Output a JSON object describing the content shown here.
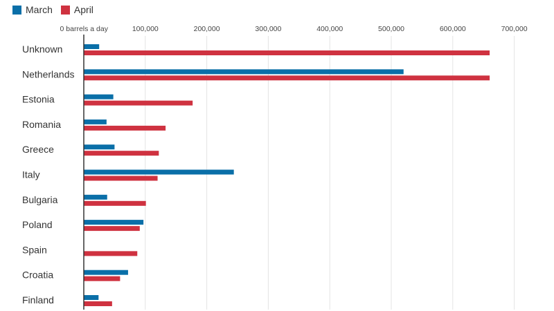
{
  "colors": {
    "march": "#0a6fa8",
    "april": "#cf3240",
    "grid": "#e4e4e4",
    "axis": "#333333"
  },
  "chart_data": {
    "type": "bar",
    "orientation": "horizontal",
    "title": "",
    "xlabel": "",
    "ylabel": "",
    "xlim": [
      0,
      700000
    ],
    "x_ticks": [
      0,
      100000,
      200000,
      300000,
      400000,
      500000,
      600000,
      700000
    ],
    "x_tick_labels": [
      "0 barrels a day",
      "100,000",
      "200,000",
      "300,000",
      "400,000",
      "500,000",
      "600,000",
      "700,000"
    ],
    "grid": true,
    "legend": "top-left",
    "categories": [
      "Unknown",
      "Netherlands",
      "Estonia",
      "Romania",
      "Greece",
      "Italy",
      "Bulgaria",
      "Poland",
      "Spain",
      "Croatia",
      "Finland"
    ],
    "series": [
      {
        "name": "March",
        "color": "#0a6fa8",
        "values": [
          25000,
          520000,
          48000,
          37000,
          50000,
          244000,
          38000,
          97000,
          0,
          72000,
          24000
        ]
      },
      {
        "name": "April",
        "color": "#cf3240",
        "values": [
          660000,
          660000,
          177000,
          133000,
          122000,
          120000,
          101000,
          91000,
          87000,
          59000,
          46000
        ]
      }
    ]
  }
}
